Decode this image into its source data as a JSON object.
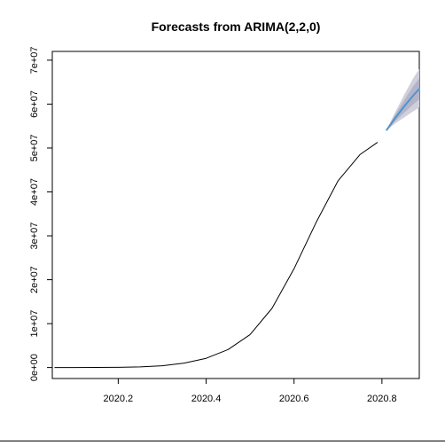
{
  "chart_data": {
    "type": "line",
    "title": "Forecasts from ARIMA(2,2,0)",
    "xlabel": "",
    "ylabel": "",
    "xlim": [
      2020.05,
      2020.885
    ],
    "ylim": [
      -2500000,
      72000000
    ],
    "x_ticks": [
      {
        "value": 2020.2,
        "label": "2020.2"
      },
      {
        "value": 2020.4,
        "label": "2020.4"
      },
      {
        "value": 2020.6,
        "label": "2020.6"
      },
      {
        "value": 2020.8,
        "label": "2020.8"
      }
    ],
    "y_ticks": [
      {
        "value": 0,
        "label": "0e+00"
      },
      {
        "value": 10000000,
        "label": "1e+07"
      },
      {
        "value": 20000000,
        "label": "2e+07"
      },
      {
        "value": 30000000,
        "label": "3e+07"
      },
      {
        "value": 40000000,
        "label": "4e+07"
      },
      {
        "value": 50000000,
        "label": "5e+07"
      },
      {
        "value": 60000000,
        "label": "6e+07"
      },
      {
        "value": 70000000,
        "label": "7e+07"
      }
    ],
    "grid": false,
    "legend": "none",
    "series": [
      {
        "role": "observed",
        "color": "#000000",
        "x": [
          2020.055,
          2020.1,
          2020.15,
          2020.2,
          2020.25,
          2020.3,
          2020.35,
          2020.4,
          2020.45,
          2020.5,
          2020.55,
          2020.6,
          2020.65,
          2020.7,
          2020.75,
          2020.79
        ],
        "y": [
          0,
          0,
          20000,
          60000,
          150000,
          400000,
          1000000,
          2100000,
          4100000,
          7500000,
          13500000,
          22500000,
          33000000,
          42500000,
          48500000,
          51300000
        ]
      },
      {
        "role": "forecast",
        "color": "#4f94cd",
        "x": [
          2020.81,
          2020.83,
          2020.85,
          2020.87,
          2020.885
        ],
        "y": [
          54000000,
          56800000,
          59400000,
          61800000,
          63500000
        ]
      }
    ],
    "intervals": [
      {
        "level": "95",
        "color": "#cfd0dc",
        "x": [
          2020.81,
          2020.83,
          2020.85,
          2020.87,
          2020.885
        ],
        "lower": [
          53900000,
          55600000,
          56900000,
          58300000,
          59200000
        ],
        "upper": [
          54100000,
          58100000,
          62000000,
          65700000,
          68000000
        ]
      },
      {
        "level": "80",
        "color": "#b3b4c8",
        "x": [
          2020.81,
          2020.83,
          2020.85,
          2020.87,
          2020.885
        ],
        "lower": [
          53950000,
          56100000,
          58000000,
          59800000,
          61100000
        ],
        "upper": [
          54050000,
          57600000,
          60800000,
          63900000,
          65900000
        ]
      }
    ]
  }
}
